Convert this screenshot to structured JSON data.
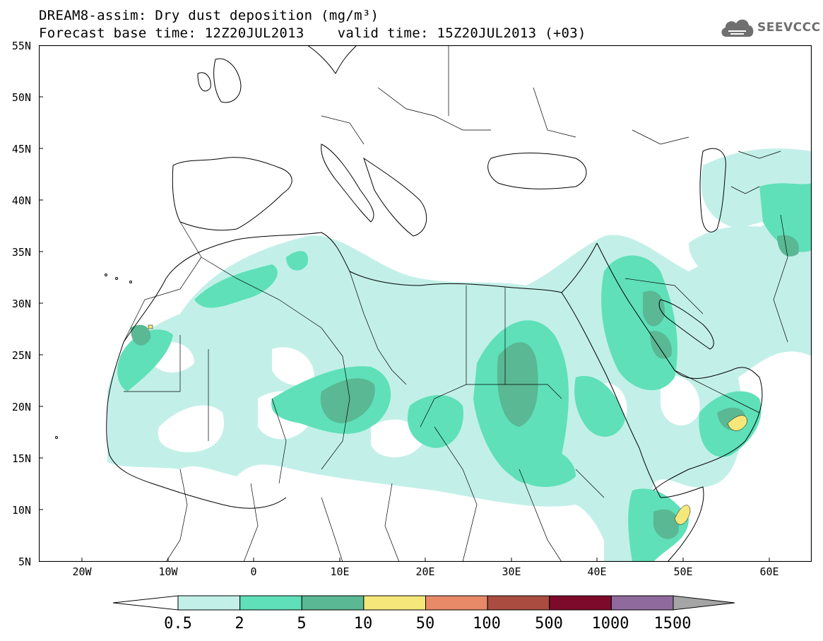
{
  "title": {
    "line1": "DREAM8-assim: Dry dust deposition (mg/m³)",
    "line2": "Forecast base time: 12Z20JUL2013    valid time: 15Z20JUL2013 (+03)"
  },
  "logo": {
    "text": "SEEVCCC",
    "icon": "cloud-icon"
  },
  "axes": {
    "lat_labels": [
      "55N",
      "50N",
      "45N",
      "40N",
      "35N",
      "30N",
      "25N",
      "20N",
      "15N",
      "10N",
      "5N"
    ],
    "lon_labels": [
      "20W",
      "10W",
      "0",
      "10E",
      "20E",
      "30E",
      "40E",
      "50E",
      "60E"
    ]
  },
  "colorbar": {
    "labels": [
      "0.5",
      "2",
      "5",
      "10",
      "50",
      "100",
      "500",
      "1000",
      "1500"
    ],
    "colors": [
      "#c2f0e8",
      "#5fe0b9",
      "#5ab894",
      "#f5e77a",
      "#e88a68",
      "#aa4c40",
      "#7e0a2b",
      "#8f6a9c",
      "#a5a5a5"
    ]
  },
  "colors": {
    "land_outline": "#000000",
    "frame": "#000000",
    "background": "#ffffff"
  }
}
